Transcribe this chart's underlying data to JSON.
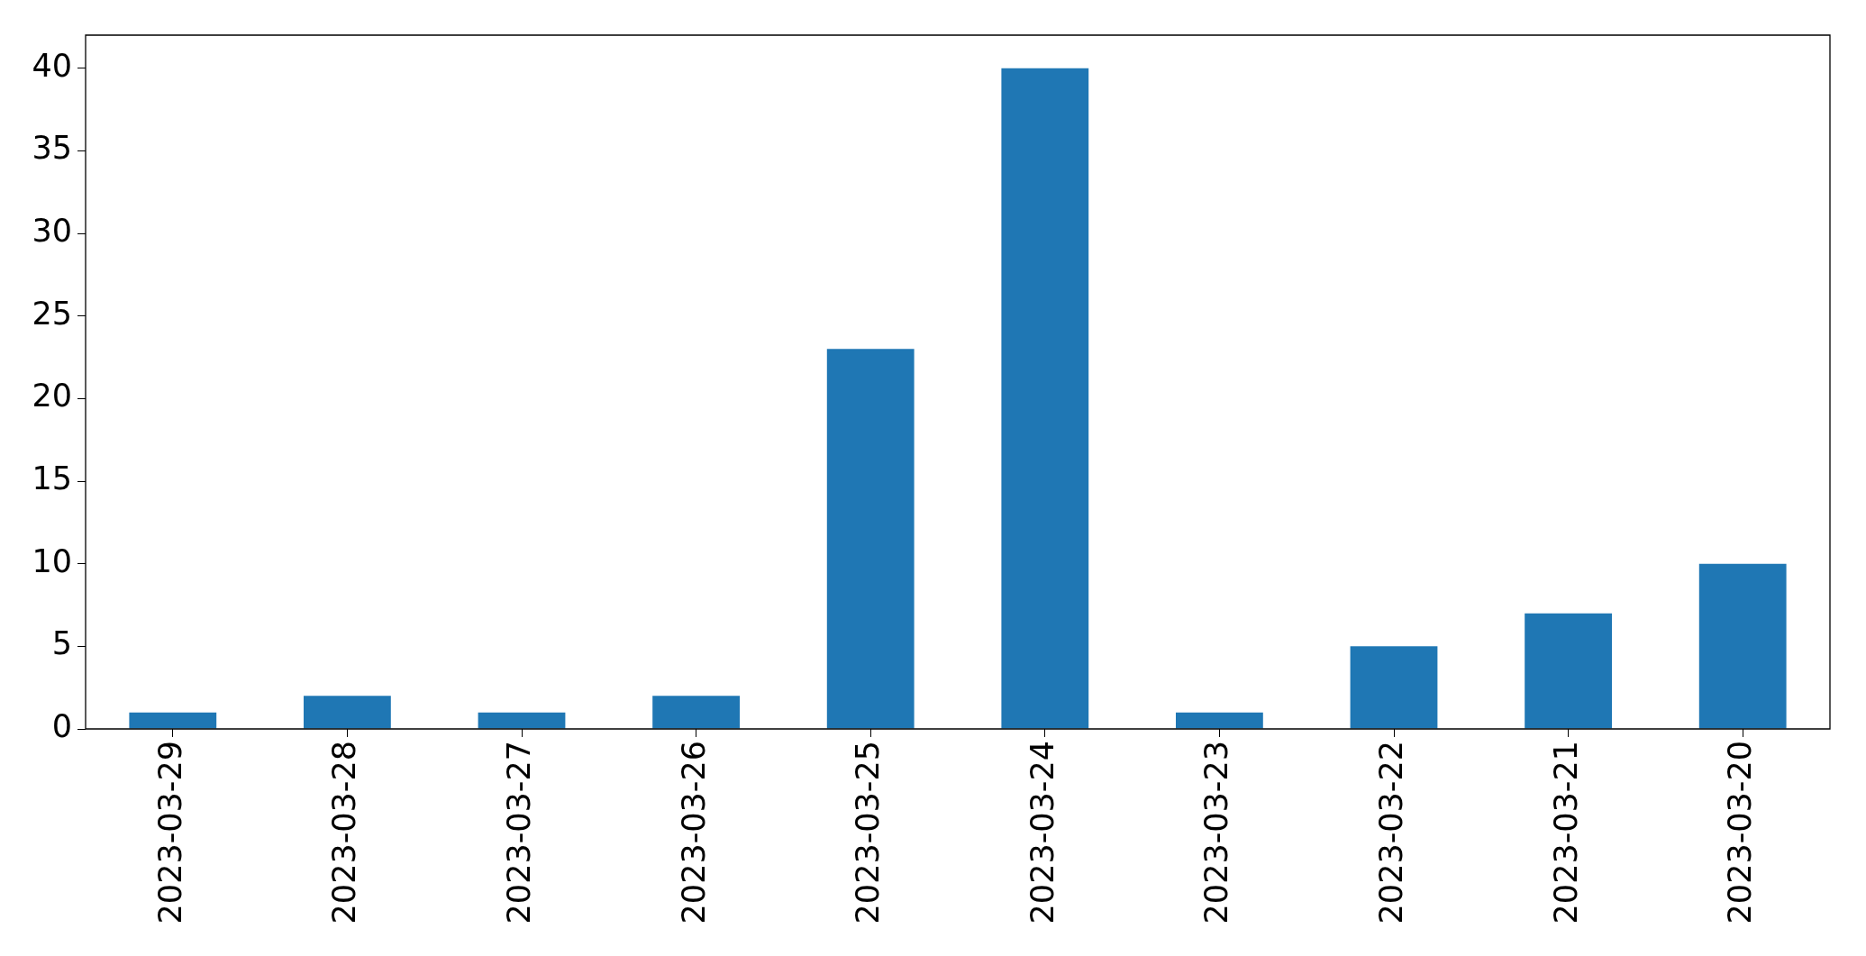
{
  "chart_data": {
    "type": "bar",
    "categories": [
      "2023-03-29",
      "2023-03-28",
      "2023-03-27",
      "2023-03-26",
      "2023-03-25",
      "2023-03-24",
      "2023-03-23",
      "2023-03-22",
      "2023-03-21",
      "2023-03-20"
    ],
    "values": [
      1,
      2,
      1,
      2,
      23,
      40,
      1,
      5,
      7,
      10
    ],
    "color": "#1f77b4",
    "ylim": [
      0,
      42
    ],
    "yticks": [
      0,
      5,
      10,
      15,
      20,
      25,
      30,
      35,
      40
    ],
    "grid": false,
    "legend": false
  }
}
